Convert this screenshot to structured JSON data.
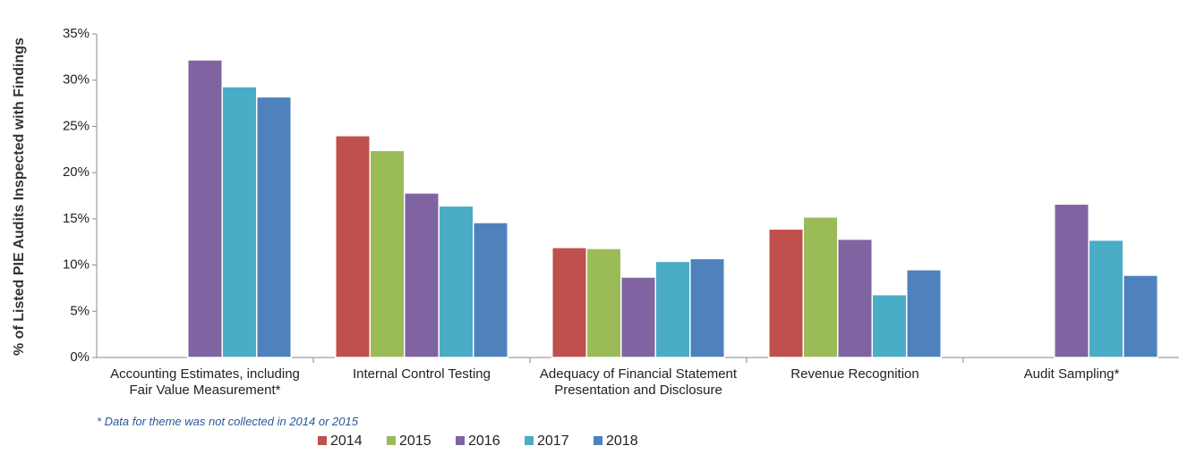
{
  "chart_data": {
    "type": "bar",
    "ylabel": "% of Listed PIE Audits Inspected with Findings",
    "categories": [
      "Accounting Estimates, including Fair Value Measurement*",
      "Internal Control Testing",
      "Adequacy of Financial Statement Presentation and Disclosure",
      "Revenue Recognition",
      "Audit Sampling*"
    ],
    "series": [
      {
        "name": "2014",
        "color": "#c0504d",
        "values": [
          null,
          24.0,
          11.9,
          13.9,
          null
        ]
      },
      {
        "name": "2015",
        "color": "#9bbb59",
        "values": [
          null,
          22.4,
          11.8,
          15.2,
          null
        ]
      },
      {
        "name": "2016",
        "color": "#8064a2",
        "values": [
          32.2,
          17.8,
          8.7,
          12.8,
          16.6
        ]
      },
      {
        "name": "2017",
        "color": "#4bacc6",
        "values": [
          29.3,
          16.4,
          10.4,
          6.8,
          12.7
        ]
      },
      {
        "name": "2018",
        "color": "#4f81bd",
        "values": [
          28.2,
          14.6,
          10.7,
          9.5,
          8.9
        ]
      }
    ],
    "ylim": [
      0,
      35
    ],
    "yticks": [
      {
        "value": 0,
        "label": "0%"
      },
      {
        "value": 5,
        "label": "5%"
      },
      {
        "value": 10,
        "label": "10%"
      },
      {
        "value": 15,
        "label": "15%"
      },
      {
        "value": 20,
        "label": "20%"
      },
      {
        "value": 25,
        "label": "25%"
      },
      {
        "value": 30,
        "label": "30%"
      },
      {
        "value": 35,
        "label": "35%"
      }
    ],
    "footnote": "* Data for theme was not collected in 2014 or 2015",
    "legend": "bottom",
    "grid": false
  }
}
